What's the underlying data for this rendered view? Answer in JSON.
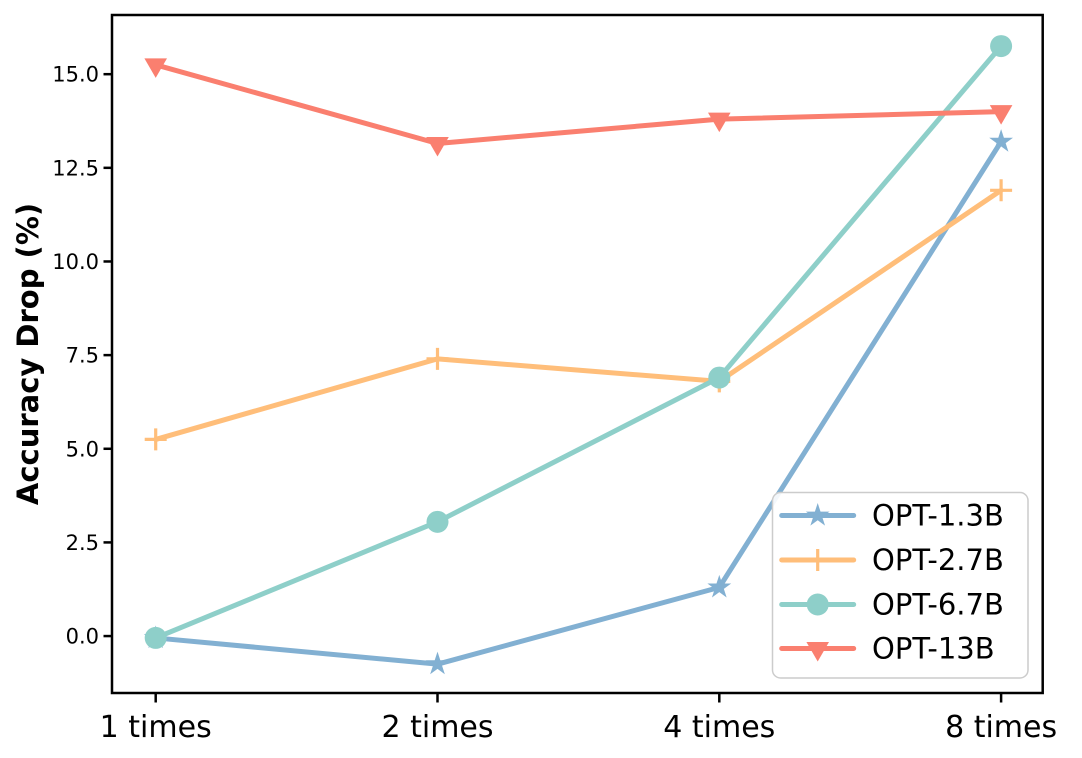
{
  "chart_data": {
    "type": "line",
    "title": "",
    "xlabel": "",
    "ylabel": "Accuracy Drop (%)",
    "categories": [
      "1 times",
      "2 times",
      "4 times",
      "8 times"
    ],
    "ytick_values": [
      0.0,
      2.5,
      5.0,
      7.5,
      10.0,
      12.5,
      15.0
    ],
    "ytick_labels": [
      "0.0",
      "2.5",
      "5.0",
      "7.5",
      "10.0",
      "12.5",
      "15.0"
    ],
    "ylim": [
      -1.52,
      16.58
    ],
    "grid": false,
    "legend_position": "lower-right-inside",
    "axis_color": "#000000",
    "legend_border_color": "#cccccc",
    "series": [
      {
        "name": "OPT-1.3B",
        "color": "#82B0D2",
        "marker": "star",
        "values": [
          -0.05,
          -0.75,
          1.3,
          13.2
        ]
      },
      {
        "name": "OPT-2.7B",
        "color": "#FFBE7A",
        "marker": "plus",
        "values": [
          5.25,
          7.4,
          6.8,
          11.9
        ]
      },
      {
        "name": "OPT-6.7B",
        "color": "#8ECFC9",
        "marker": "circle",
        "values": [
          -0.05,
          3.05,
          6.9,
          15.75
        ]
      },
      {
        "name": "OPT-13B",
        "color": "#FA7F6F",
        "marker": "triangle-down",
        "values": [
          15.25,
          13.15,
          13.8,
          14.0
        ]
      }
    ]
  }
}
